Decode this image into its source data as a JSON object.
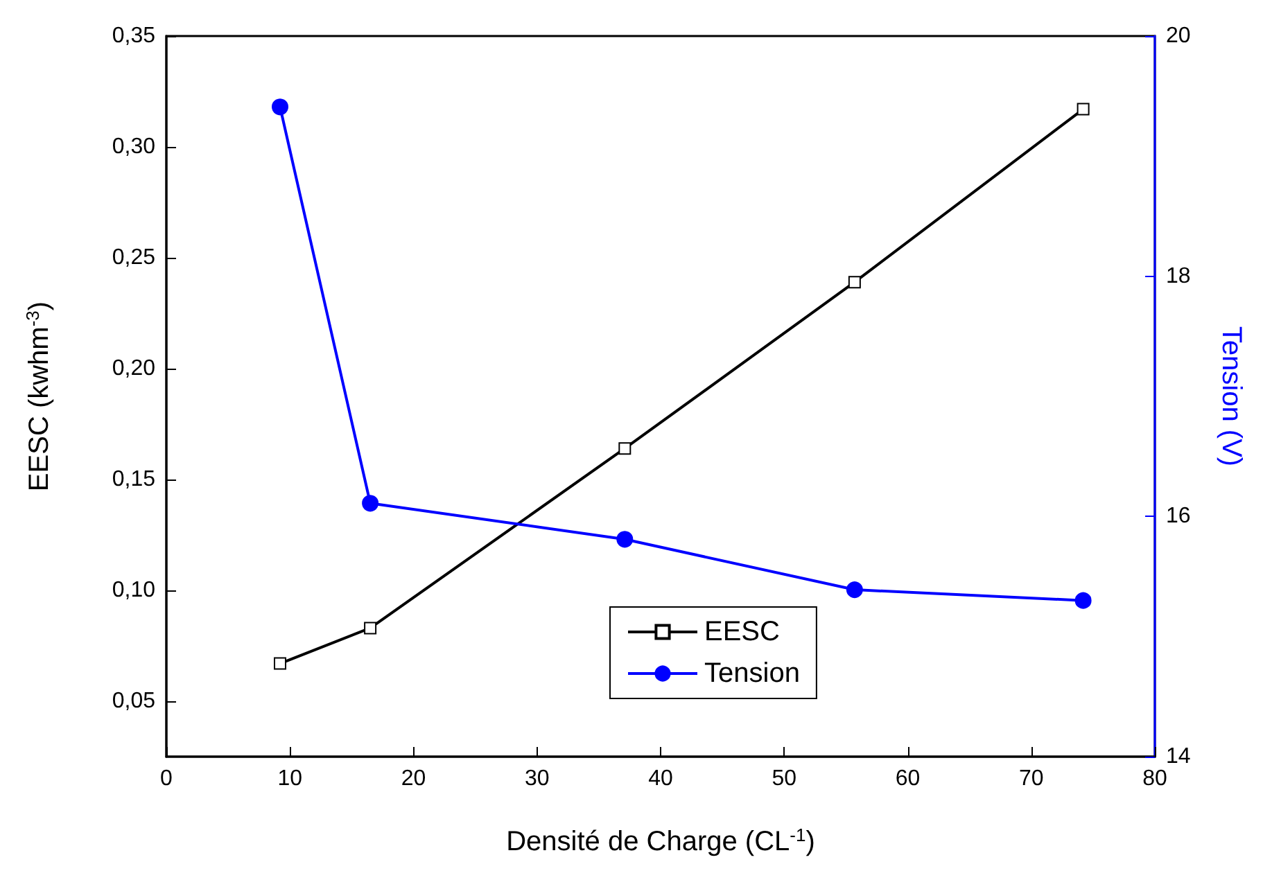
{
  "chart_data": {
    "type": "line",
    "xlabel": "Densité de Charge (CL$^{-1}$)",
    "ylabel": "EESC (kwhm$^{-3}$)",
    "y2label": "Tension (V)",
    "x": [
      9.2,
      16.5,
      37.1,
      55.7,
      74.2
    ],
    "series": [
      {
        "name": "EESC",
        "color": "#000000",
        "marker": "square",
        "values": [
          0.067,
          0.083,
          0.164,
          0.239,
          0.317
        ]
      },
      {
        "name": "Tension",
        "color": "#0000ff",
        "marker": "circle",
        "axis": "y2",
        "values": [
          19.41,
          16.11,
          15.81,
          15.39,
          15.3
        ]
      }
    ],
    "xlim": [
      0,
      80
    ],
    "xticks": [
      0,
      10,
      20,
      30,
      40,
      50,
      60,
      70,
      80
    ],
    "ylim": [
      0.025,
      0.35
    ],
    "yticks": [
      {
        "value": 0.05,
        "label": "0,05"
      },
      {
        "value": 0.1,
        "label": "0,10"
      },
      {
        "value": 0.15,
        "label": "0,15"
      },
      {
        "value": 0.2,
        "label": "0,20"
      },
      {
        "value": 0.25,
        "label": "0,25"
      },
      {
        "value": 0.3,
        "label": "0,30"
      },
      {
        "value": 0.35,
        "label": "0,35"
      }
    ],
    "y2lim": [
      14,
      20
    ],
    "y2ticks": [
      14,
      16,
      18,
      20
    ],
    "legend": "bottom",
    "grid": false,
    "line_style": "solid"
  }
}
